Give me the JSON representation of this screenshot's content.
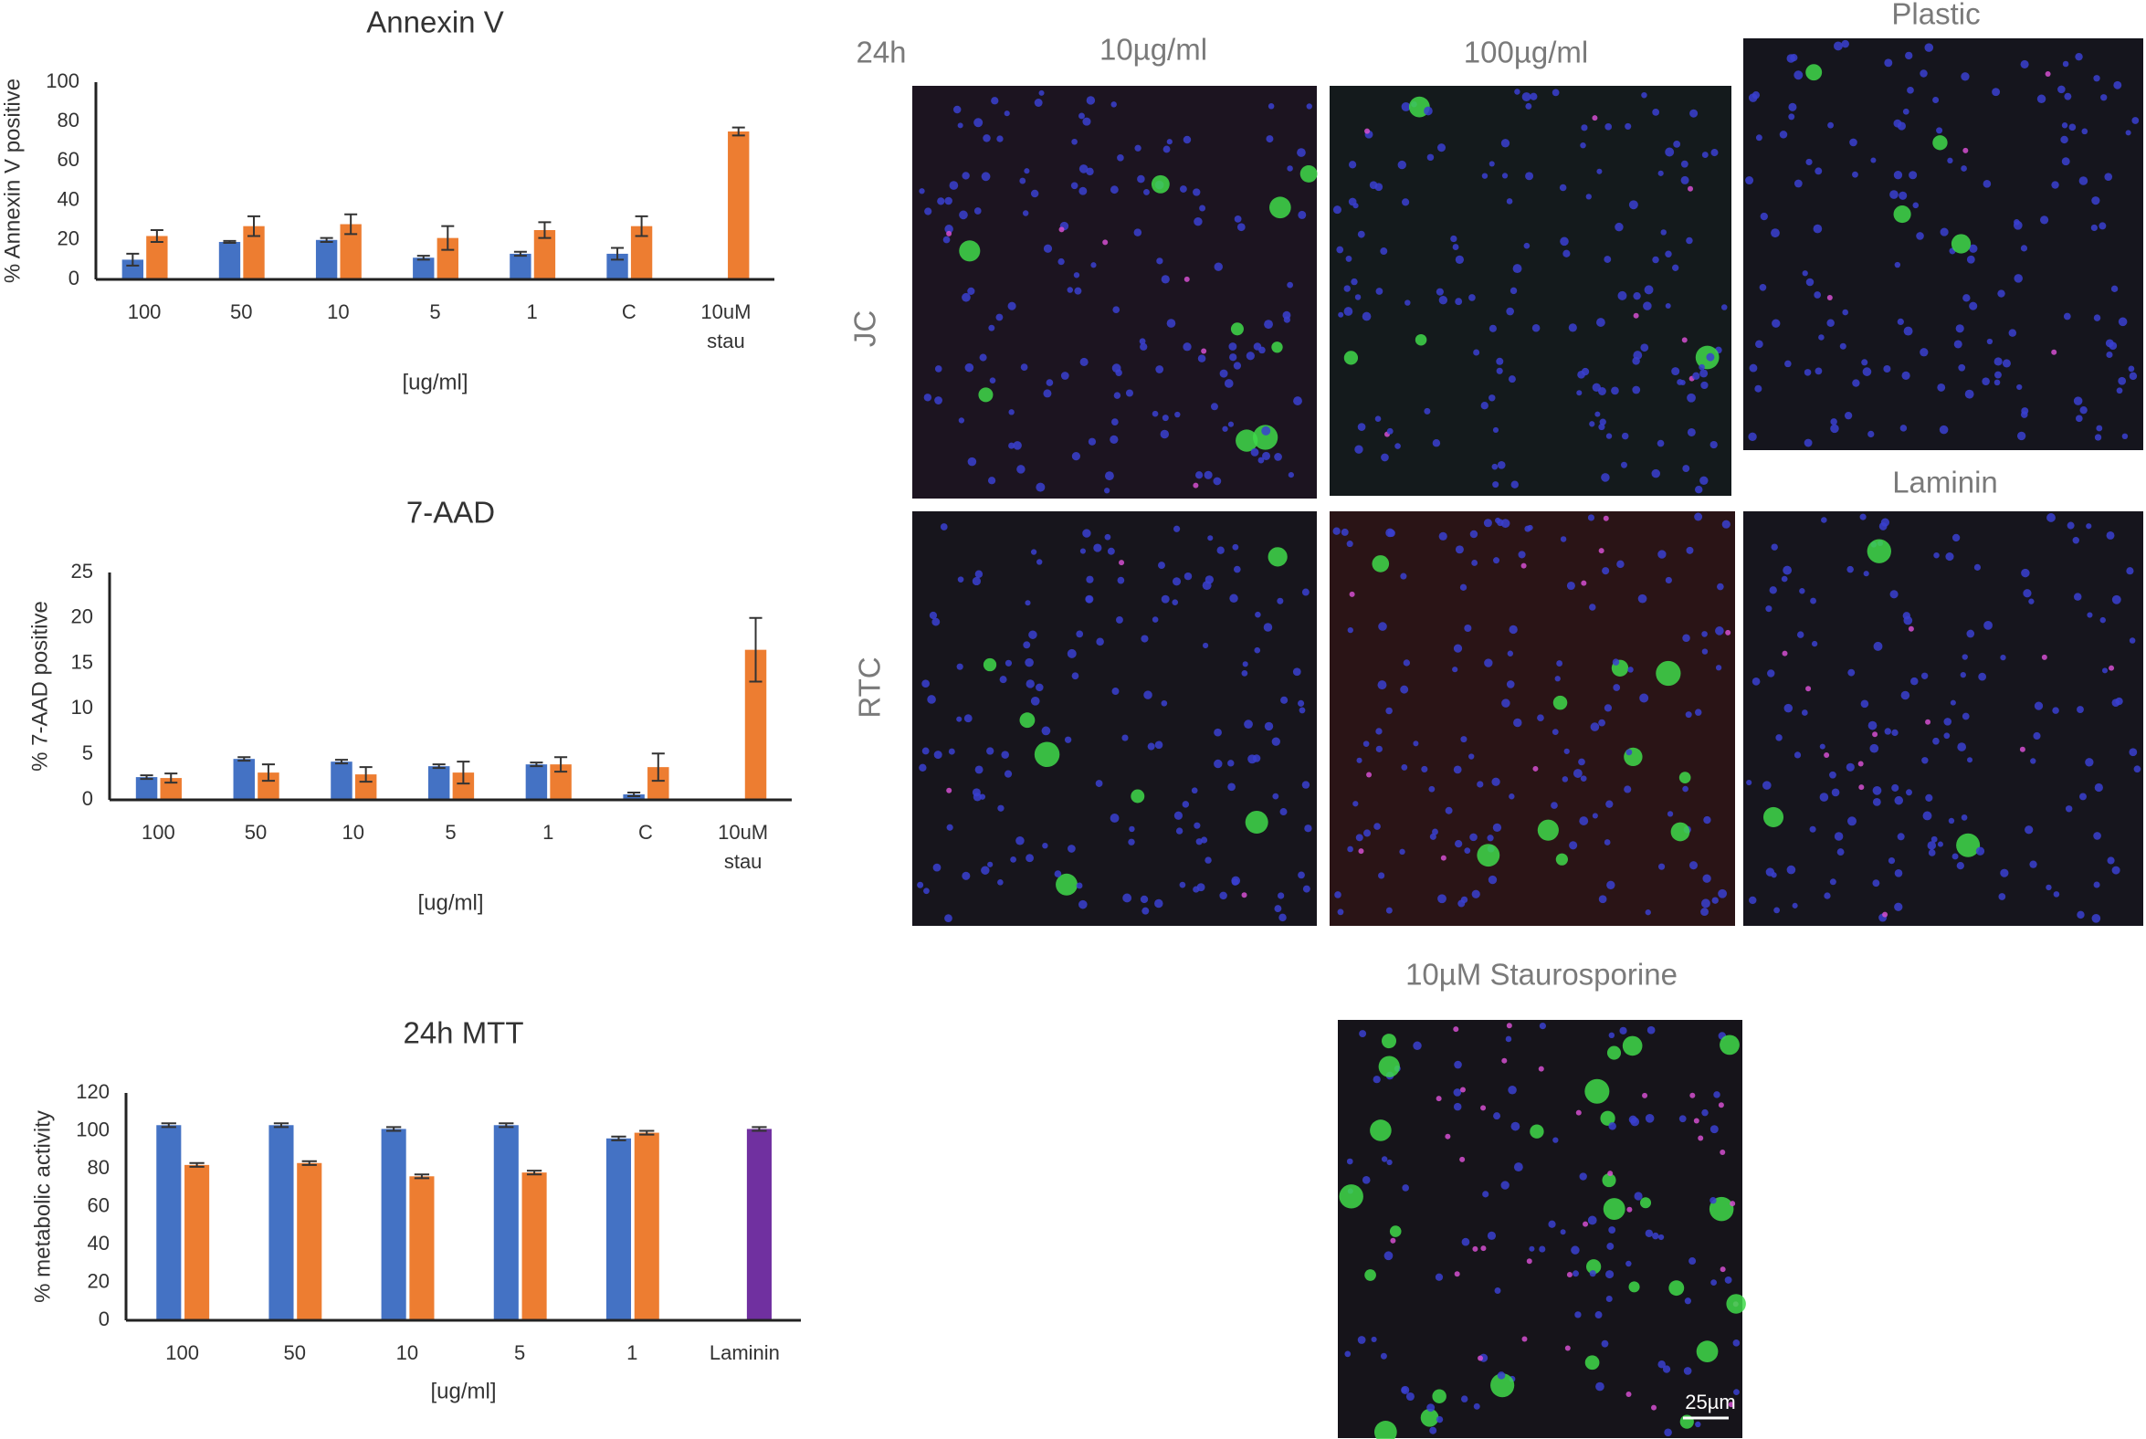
{
  "chart_data": [
    {
      "type": "bar",
      "title": "Annexin V",
      "y_label": "% Annexin V positive",
      "x_label": "[ug/ml]",
      "categories": [
        "100",
        "50",
        "10",
        "5",
        "1",
        "C",
        "10uM stau"
      ],
      "series": [
        {
          "color": "#4472c4",
          "values": [
            10,
            19,
            20,
            11,
            13,
            13,
            null
          ],
          "errors": [
            3,
            0.5,
            1,
            1,
            1,
            3,
            null
          ]
        },
        {
          "color": "#ed7d31",
          "values": [
            22,
            27,
            28,
            21,
            25,
            27,
            75
          ],
          "errors": [
            3,
            5,
            5,
            6,
            4,
            5,
            2
          ]
        }
      ],
      "ylim": [
        0,
        100
      ],
      "yticks": [
        0,
        20,
        40,
        60,
        80,
        100
      ]
    },
    {
      "type": "bar",
      "title": "7-AAD",
      "y_label": "% 7-AAD positive",
      "x_label": "[ug/ml]",
      "categories": [
        "100",
        "50",
        "10",
        "5",
        "1",
        "C",
        "10uM stau"
      ],
      "series": [
        {
          "color": "#4472c4",
          "values": [
            2.5,
            4.5,
            4.2,
            3.7,
            3.9,
            0.6,
            null
          ],
          "errors": [
            0.2,
            0.2,
            0.2,
            0.2,
            0.2,
            0.2,
            null
          ]
        },
        {
          "color": "#ed7d31",
          "values": [
            2.4,
            3.0,
            2.8,
            3.0,
            3.9,
            3.6,
            16.5
          ],
          "errors": [
            0.5,
            0.9,
            0.8,
            1.2,
            0.8,
            1.5,
            3.5
          ]
        }
      ],
      "ylim": [
        0,
        25
      ],
      "yticks": [
        0,
        5,
        10,
        15,
        20,
        25
      ]
    },
    {
      "type": "bar",
      "title": "24h MTT",
      "y_label": "% metabolic activity",
      "x_label": "[ug/ml]",
      "categories": [
        "100",
        "50",
        "10",
        "5",
        "1",
        "Laminin"
      ],
      "series": [
        {
          "color": "#4472c4",
          "values": [
            103,
            103,
            101,
            103,
            96,
            null
          ],
          "errors": [
            1,
            1,
            1,
            1,
            1,
            null
          ]
        },
        {
          "color": "#ed7d31",
          "values": [
            82,
            83,
            76,
            78,
            99,
            null
          ],
          "errors": [
            1,
            1,
            1,
            1,
            1,
            null
          ]
        },
        {
          "color": "#7030a0",
          "values": [
            null,
            null,
            null,
            null,
            null,
            101
          ],
          "errors": [
            null,
            null,
            null,
            null,
            null,
            1
          ]
        }
      ],
      "ylim": [
        0,
        120
      ],
      "yticks": [
        0,
        20,
        40,
        60,
        80,
        100,
        120
      ]
    }
  ],
  "micrographs": {
    "time": "24h",
    "columns": [
      "10µg/ml",
      "100µg/ml"
    ],
    "rows": [
      "JC",
      "RTC"
    ],
    "substrates": [
      "Plastic",
      "Laminin"
    ],
    "control": "10µM Staurosporine",
    "scale_bar": "25µm"
  }
}
